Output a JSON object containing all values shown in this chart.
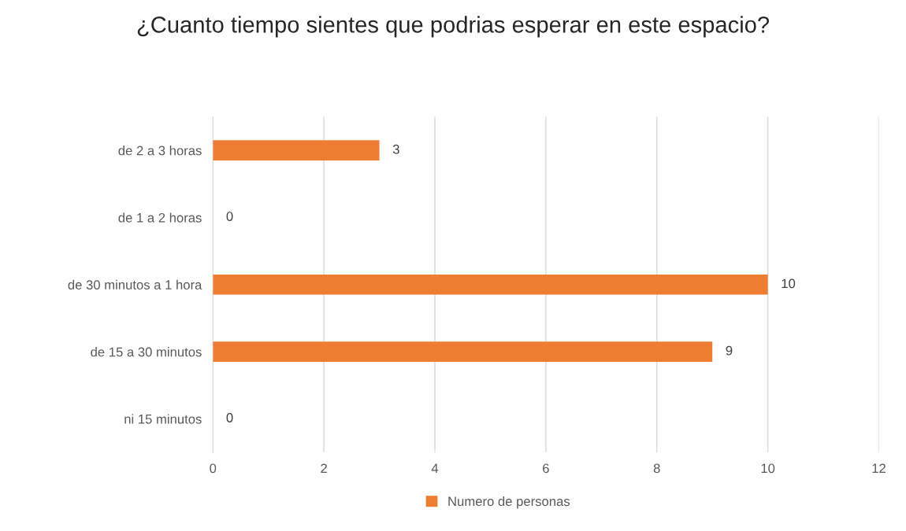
{
  "chart_data": {
    "type": "bar",
    "orientation": "horizontal",
    "title": "¿Cuanto tiempo sientes que podrias esperar en este espacio?",
    "categories": [
      "de 2 a 3 horas",
      "de 1 a 2 horas",
      "de 30 minutos a 1 hora",
      "de 15 a 30 minutos",
      "ni 15 minutos"
    ],
    "series": [
      {
        "name": "Numero de personas",
        "color": "#ed7d31",
        "values": [
          3,
          0,
          10,
          9,
          0
        ]
      }
    ],
    "xlim": [
      0,
      12
    ],
    "xticks": [
      0,
      2,
      4,
      6,
      8,
      10,
      12
    ],
    "grid": "x",
    "legend": "bottom",
    "data_labels": true
  }
}
